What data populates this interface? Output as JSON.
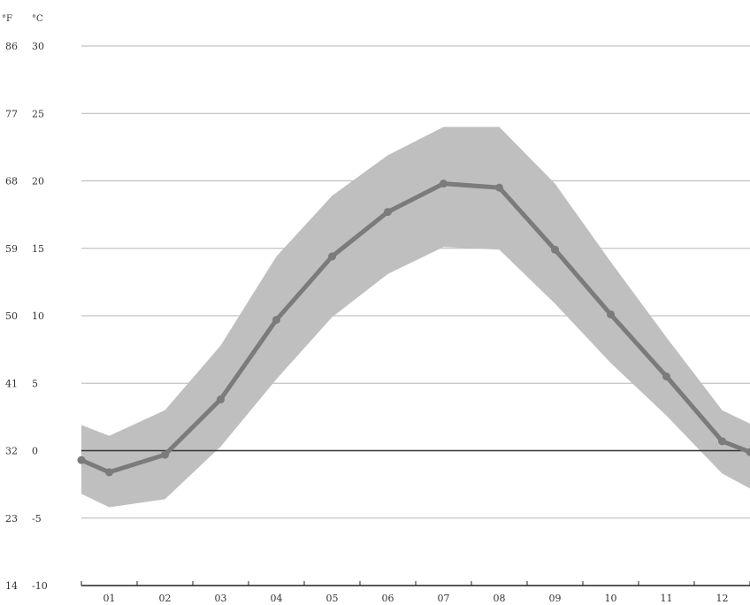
{
  "chart_data": {
    "type": "line",
    "title": "",
    "xlabel": "",
    "ylabel": "",
    "unit_labels": {
      "fahrenheit": "°F",
      "celsius": "°C"
    },
    "categories": [
      "01",
      "02",
      "03",
      "04",
      "05",
      "06",
      "07",
      "08",
      "09",
      "10",
      "11",
      "12"
    ],
    "ylim": [
      -10,
      30
    ],
    "y_ticks_c": [
      30,
      25,
      20,
      15,
      10,
      5,
      0,
      -5,
      -10
    ],
    "y_ticks_c_labels": [
      "30",
      "25",
      "20",
      "15",
      "10",
      "5",
      "0",
      "-5",
      "-10"
    ],
    "y_ticks_f_labels": [
      "86",
      "77",
      "68",
      "59",
      "50",
      "41",
      "32",
      "23",
      "14"
    ],
    "grid": true,
    "series": [
      {
        "x": [
          0.0,
          0.5,
          1.5,
          2.5,
          3.5,
          4.5,
          5.5,
          6.5,
          7.5,
          8.5,
          9.5,
          10.5,
          11.5,
          12.0
        ],
        "values": [
          -0.7,
          -1.6,
          -0.3,
          3.8,
          9.7,
          14.4,
          17.7,
          19.8,
          19.5,
          14.9,
          10.1,
          5.5,
          0.7,
          -0.1
        ]
      }
    ],
    "band": {
      "x": [
        0.0,
        0.5,
        1.5,
        2.5,
        3.5,
        4.5,
        5.5,
        6.5,
        7.5,
        8.5,
        9.5,
        10.5,
        11.5,
        12.0
      ],
      "upper": [
        1.9,
        1.1,
        3.0,
        7.8,
        14.4,
        18.9,
        21.9,
        24.0,
        24.0,
        19.8,
        14.0,
        8.4,
        3.0,
        2.0
      ],
      "lower": [
        -3.2,
        -4.2,
        -3.6,
        0.3,
        5.3,
        9.9,
        13.1,
        15.1,
        14.9,
        10.9,
        6.5,
        2.6,
        -1.7,
        -2.8
      ]
    },
    "colors": {
      "line": "#7b7b7b",
      "band": "#bfbfbf",
      "grid": "#b5b5b5",
      "zero_line": "#333333",
      "axis": "#222222"
    }
  }
}
